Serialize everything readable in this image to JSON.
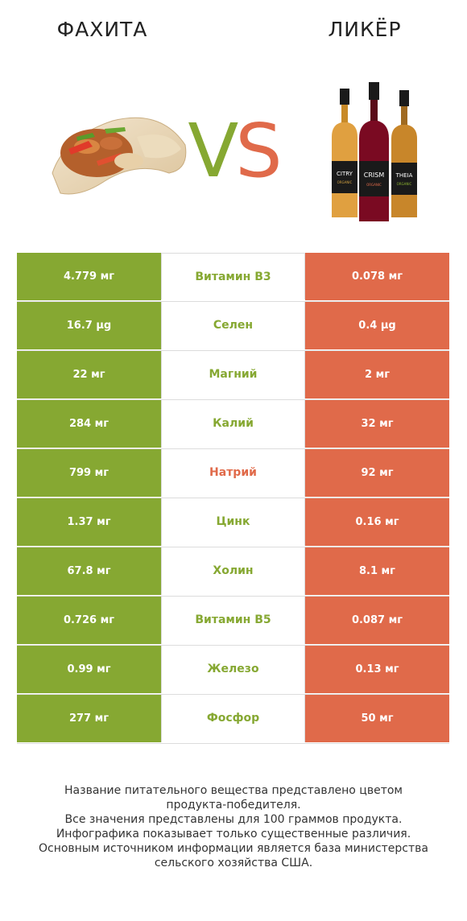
{
  "header": {
    "left_title": "ФАХИТА",
    "right_title": "ЛИКЁР",
    "vs_v": "V",
    "vs_s": "S"
  },
  "colors": {
    "winner_left": "#86a832",
    "winner_right": "#e06a4a"
  },
  "bottles": {
    "left_label": "CITRY",
    "middle_label": "CRISM",
    "right_label": "THEIA",
    "sub_label": "ORGANIC"
  },
  "rows": [
    {
      "left": "4.779 мг",
      "name": "Витамин B3",
      "right": "0.078 мг",
      "winner": "left"
    },
    {
      "left": "16.7 µg",
      "name": "Селен",
      "right": "0.4 µg",
      "winner": "left"
    },
    {
      "left": "22 мг",
      "name": "Магний",
      "right": "2 мг",
      "winner": "left"
    },
    {
      "left": "284 мг",
      "name": "Калий",
      "right": "32 мг",
      "winner": "left"
    },
    {
      "left": "799 мг",
      "name": "Натрий",
      "right": "92 мг",
      "winner": "right"
    },
    {
      "left": "1.37 мг",
      "name": "Цинк",
      "right": "0.16 мг",
      "winner": "left"
    },
    {
      "left": "67.8 мг",
      "name": "Холин",
      "right": "8.1 мг",
      "winner": "left"
    },
    {
      "left": "0.726 мг",
      "name": "Витамин B5",
      "right": "0.087 мг",
      "winner": "left"
    },
    {
      "left": "0.99 мг",
      "name": "Железо",
      "right": "0.13 мг",
      "winner": "left"
    },
    {
      "left": "277 мг",
      "name": "Фосфор",
      "right": "50 мг",
      "winner": "left"
    }
  ],
  "footer": {
    "line1": "Название питательного вещества представлено цветом",
    "line2": "продукта-победителя.",
    "line3": "Все значения представлены для 100 граммов продукта.",
    "line4": "Инфографика показывает только существенные различия.",
    "line5": "Основным источником информации является база министерства",
    "line6": "сельского хозяйства США."
  }
}
